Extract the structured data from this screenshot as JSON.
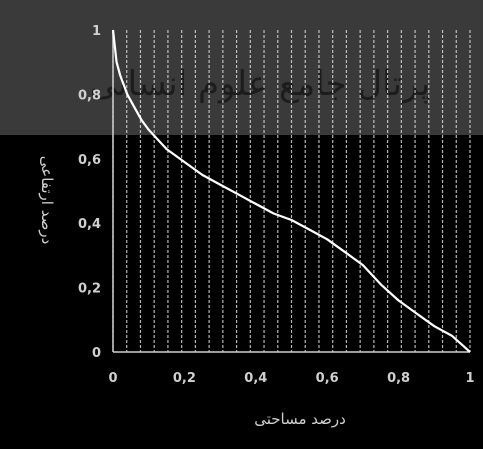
{
  "chart_data": {
    "type": "line",
    "xlabel": "درصد مساحتی",
    "ylabel": "درصد ارتفاعی",
    "xlim": [
      0,
      1
    ],
    "ylim": [
      0,
      1
    ],
    "x_ticks": [
      "0",
      "0,2",
      "0,4",
      "0,6",
      "0,8",
      "1"
    ],
    "y_ticks": [
      "0",
      "0,2",
      "0,4",
      "0,6",
      "0,8",
      "1"
    ],
    "grid": "vertical",
    "series": [
      {
        "name": "",
        "color": "#ffffff",
        "points": [
          [
            0.0,
            1.0
          ],
          [
            0.01,
            0.9
          ],
          [
            0.02,
            0.86
          ],
          [
            0.04,
            0.8
          ],
          [
            0.06,
            0.76
          ],
          [
            0.08,
            0.72
          ],
          [
            0.1,
            0.69
          ],
          [
            0.15,
            0.63
          ],
          [
            0.2,
            0.59
          ],
          [
            0.25,
            0.55
          ],
          [
            0.3,
            0.52
          ],
          [
            0.35,
            0.49
          ],
          [
            0.4,
            0.46
          ],
          [
            0.45,
            0.43
          ],
          [
            0.5,
            0.41
          ],
          [
            0.55,
            0.38
          ],
          [
            0.6,
            0.35
          ],
          [
            0.65,
            0.31
          ],
          [
            0.7,
            0.27
          ],
          [
            0.75,
            0.21
          ],
          [
            0.8,
            0.16
          ],
          [
            0.85,
            0.12
          ],
          [
            0.9,
            0.08
          ],
          [
            0.95,
            0.05
          ],
          [
            0.98,
            0.02
          ],
          [
            1.0,
            0.0
          ]
        ]
      }
    ]
  },
  "watermark": "پرتال جامع علوم انسانی",
  "colors": {
    "background": "#000000",
    "band": "#3a3a3a",
    "grid": "#d8d8d8",
    "text": "#d0d0d0",
    "axis": "#cfcfcf"
  }
}
